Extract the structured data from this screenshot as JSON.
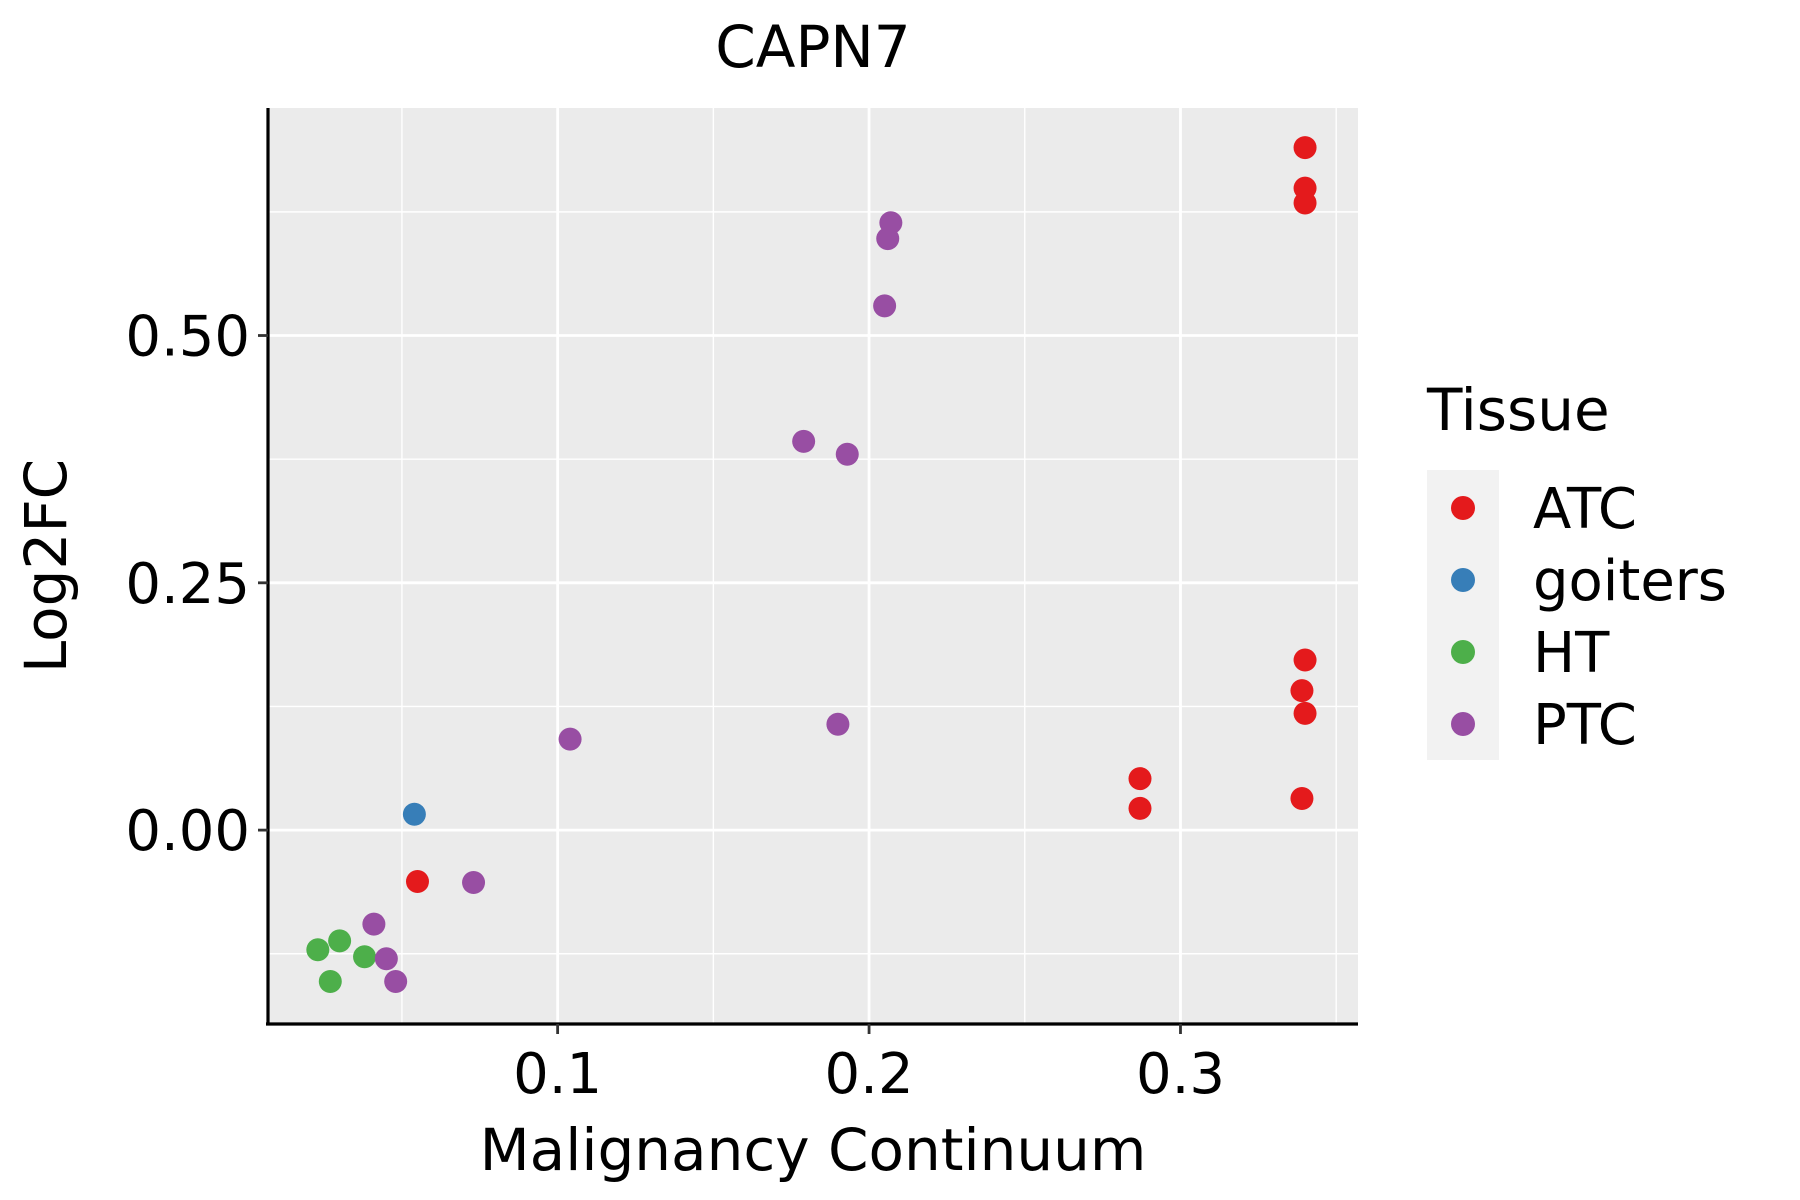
{
  "chart_data": {
    "type": "scatter",
    "title": "CAPN7",
    "xlabel": "Malignancy Continuum",
    "ylabel": "Log2FC",
    "xlim": [
      0.007,
      0.357
    ],
    "ylim": [
      -0.195,
      0.73
    ],
    "x_ticks": [
      0.1,
      0.2,
      0.3
    ],
    "x_tick_labels": [
      "0.1",
      "0.2",
      "0.3"
    ],
    "x_minor": [
      0.05,
      0.15,
      0.25,
      0.35
    ],
    "y_ticks": [
      0.0,
      0.25,
      0.5
    ],
    "y_tick_labels": [
      "0.00",
      "0.25",
      "0.50"
    ],
    "y_minor": [
      -0.125,
      0.125,
      0.375,
      0.625
    ],
    "grid": true,
    "legend": {
      "title": "Tissue",
      "position": "right",
      "entries": [
        {
          "name": "ATC",
          "color": "#E41A1C"
        },
        {
          "name": "goiters",
          "color": "#377EB8"
        },
        {
          "name": "HT",
          "color": "#4DAF4A"
        },
        {
          "name": "PTC",
          "color": "#984EA3"
        }
      ]
    },
    "series": [
      {
        "name": "ATC",
        "color": "#E41A1C",
        "points": [
          [
            0.34,
            0.69
          ],
          [
            0.34,
            0.649
          ],
          [
            0.34,
            0.634
          ],
          [
            0.34,
            0.172
          ],
          [
            0.339,
            0.141
          ],
          [
            0.34,
            0.118
          ],
          [
            0.339,
            0.032
          ],
          [
            0.287,
            0.052
          ],
          [
            0.287,
            0.022
          ],
          [
            0.055,
            -0.052
          ]
        ]
      },
      {
        "name": "goiters",
        "color": "#377EB8",
        "points": [
          [
            0.054,
            0.016
          ]
        ]
      },
      {
        "name": "HT",
        "color": "#4DAF4A",
        "points": [
          [
            0.023,
            -0.121
          ],
          [
            0.03,
            -0.112
          ],
          [
            0.038,
            -0.128
          ],
          [
            0.027,
            -0.153
          ]
        ]
      },
      {
        "name": "PTC",
        "color": "#984EA3",
        "points": [
          [
            0.207,
            0.614
          ],
          [
            0.206,
            0.598
          ],
          [
            0.205,
            0.53
          ],
          [
            0.179,
            0.393
          ],
          [
            0.193,
            0.38
          ],
          [
            0.104,
            0.092
          ],
          [
            0.19,
            0.107
          ],
          [
            0.073,
            -0.053
          ],
          [
            0.041,
            -0.095
          ],
          [
            0.045,
            -0.13
          ],
          [
            0.048,
            -0.153
          ]
        ]
      }
    ]
  }
}
